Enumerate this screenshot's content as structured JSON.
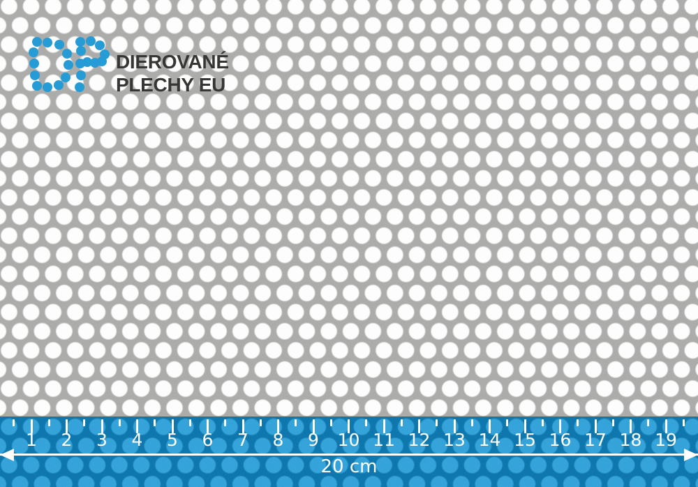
{
  "brand": {
    "monogram": "DP",
    "name_line1": "DIEROVANÉ",
    "name_line2": "PLECHY EU"
  },
  "sheet": {
    "description": "perforated metal sheet with staggered round holes"
  },
  "ruler": {
    "unit_numbers": [
      "1",
      "2",
      "3",
      "4",
      "5",
      "6",
      "7",
      "8",
      "9",
      "10",
      "11",
      "12",
      "13",
      "14",
      "15",
      "16",
      "17",
      "18",
      "19"
    ],
    "length_label": "20 cm"
  },
  "colors": {
    "metal": "#a7a7a5",
    "hole": "#fdfdfd",
    "band": "#0b70a8",
    "band_hole": "#2d9ed7",
    "logo_blue": "#1f96d3",
    "logo_text": "#2e2e2c",
    "white": "#ffffff"
  }
}
